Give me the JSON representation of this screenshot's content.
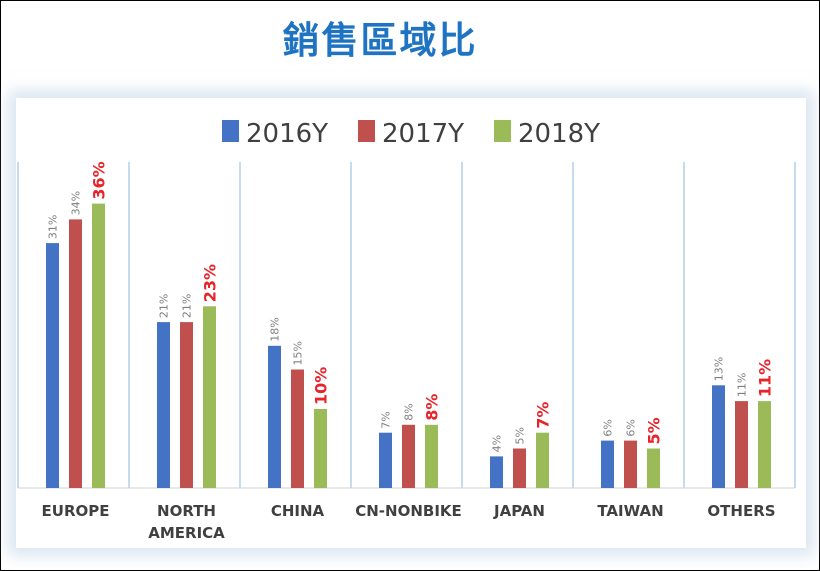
{
  "title": "銷售區域比",
  "chart_data": {
    "type": "bar",
    "categories": [
      "EUROPE",
      [
        "NORTH",
        "AMERICA"
      ],
      "CHINA",
      "CN-NONBIKE",
      "JAPAN",
      "TAIWAN",
      "OTHERS"
    ],
    "series": [
      {
        "name": "2016Y",
        "color": "#4472c4",
        "values": [
          31,
          21,
          18,
          7,
          4,
          6,
          13
        ],
        "labels": [
          "31%",
          "21%",
          "18%",
          "7%",
          "4%",
          "6%",
          "13%"
        ]
      },
      {
        "name": "2017Y",
        "color": "#c0504d",
        "values": [
          34,
          21,
          15,
          8,
          5,
          6,
          11
        ],
        "labels": [
          "34%",
          "21%",
          "15%",
          "8%",
          "5%",
          "6%",
          "11%"
        ]
      },
      {
        "name": "2018Y",
        "color": "#9bbb59",
        "values": [
          36,
          23,
          10,
          8,
          7,
          5,
          11
        ],
        "labels": [
          "36%",
          "23%",
          "10%",
          "8%",
          "7%",
          "5%",
          "11%"
        ]
      }
    ],
    "ylim": [
      0,
      40
    ],
    "grid": false,
    "legend": "top",
    "highlight_color": "#e8232a",
    "label_color": "#7f7f7f",
    "separator_color": "#9dc3e6"
  }
}
